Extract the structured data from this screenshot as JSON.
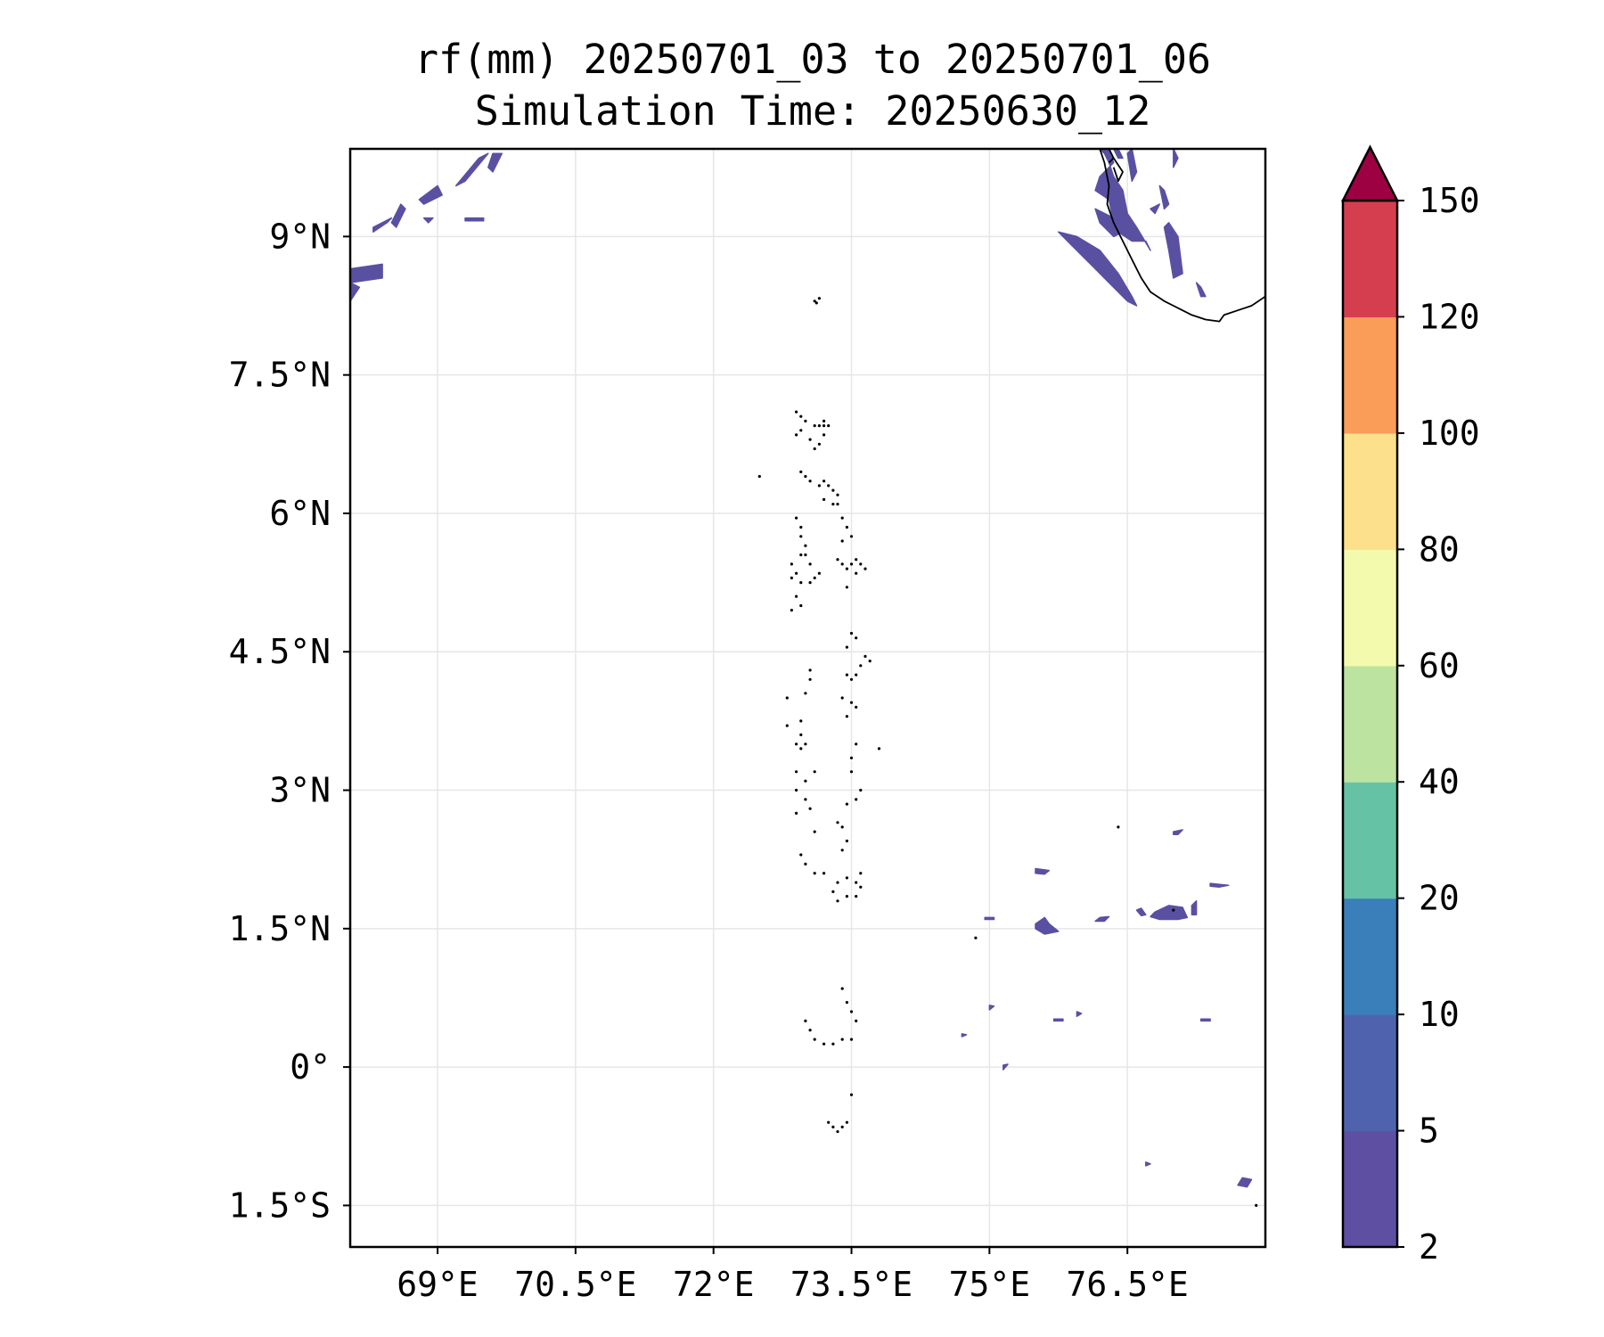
{
  "chart_data": {
    "type": "heatmap",
    "title": "rf(mm) 20250701_03 to 20250701_06",
    "subtitle": "Simulation Time: 20250630_12",
    "xlabel": "",
    "ylabel": "",
    "xlim": [
      68.05,
      78.0
    ],
    "ylim": [
      -1.95,
      9.95
    ],
    "grid": true,
    "x_ticks": [
      {
        "value": 69,
        "label": "69°E"
      },
      {
        "value": 70.5,
        "label": "70.5°E"
      },
      {
        "value": 72,
        "label": "72°E"
      },
      {
        "value": 73.5,
        "label": "73.5°E"
      },
      {
        "value": 75,
        "label": "75°E"
      },
      {
        "value": 76.5,
        "label": "76.5°E"
      }
    ],
    "y_ticks": [
      {
        "value": 9,
        "label": "9°N"
      },
      {
        "value": 7.5,
        "label": "7.5°N"
      },
      {
        "value": 6,
        "label": "6°N"
      },
      {
        "value": 4.5,
        "label": "4.5°N"
      },
      {
        "value": 3,
        "label": "3°N"
      },
      {
        "value": 1.5,
        "label": "1.5°N"
      },
      {
        "value": 0,
        "label": "0°"
      },
      {
        "value": -1.5,
        "label": "1.5°S"
      }
    ],
    "colorbar": {
      "levels": [
        2,
        5,
        10,
        20,
        40,
        60,
        80,
        100,
        120,
        150
      ],
      "labels": [
        "2",
        "5",
        "10",
        "20",
        "40",
        "60",
        "80",
        "100",
        "120",
        "150"
      ],
      "colors": [
        "#5e4fa2",
        "#4f62ad",
        "#3a7fb9",
        "#66c2a5",
        "#bde3a0",
        "#f4faad",
        "#fde08b",
        "#f99d59",
        "#d53e4f"
      ],
      "extend_color": "#9e0142",
      "extend": "max"
    },
    "rain_color": "#5a50a2",
    "rain_areas": [
      {
        "lon": [
          68.05,
          68.4,
          68.4,
          68.05
        ],
        "lat": [
          8.65,
          8.7,
          8.55,
          8.5
        ]
      },
      {
        "lon": [
          68.05,
          68.15,
          68.05
        ],
        "lat": [
          8.5,
          8.45,
          8.3
        ]
      },
      {
        "lon": [
          68.3,
          68.5,
          68.45,
          68.3
        ],
        "lat": [
          9.1,
          9.2,
          9.15,
          9.05
        ]
      },
      {
        "lon": [
          68.5,
          68.6,
          68.65,
          68.55
        ],
        "lat": [
          9.15,
          9.35,
          9.3,
          9.1
        ]
      },
      {
        "lon": [
          68.8,
          69.0,
          69.05,
          68.85
        ],
        "lat": [
          9.4,
          9.55,
          9.45,
          9.35
        ]
      },
      {
        "lon": [
          69.2,
          69.45,
          69.55,
          69.3
        ],
        "lat": [
          9.55,
          9.85,
          9.9,
          9.6
        ]
      },
      {
        "lon": [
          69.55,
          69.6,
          69.7,
          69.6
        ],
        "lat": [
          9.75,
          9.9,
          9.9,
          9.7
        ]
      },
      {
        "lon": [
          69.3,
          69.5,
          69.5,
          69.3
        ],
        "lat": [
          9.2,
          9.2,
          9.17,
          9.17
        ]
      },
      {
        "lon": [
          68.85,
          68.95,
          68.9
        ],
        "lat": [
          9.2,
          9.2,
          9.15
        ]
      },
      {
        "lon": [
          76.1,
          76.3,
          76.35,
          76.2,
          76.15,
          76.3,
          76.35,
          76.4,
          76.55,
          76.7,
          76.75,
          76.6,
          76.5,
          76.45,
          76.35,
          76.3,
          76.25,
          76.2
        ],
        "lat": [
          9.95,
          9.95,
          9.8,
          9.65,
          9.5,
          9.4,
          9.15,
          9.05,
          8.95,
          8.95,
          8.85,
          9.1,
          9.25,
          9.5,
          9.65,
          9.8,
          9.9,
          9.95
        ]
      },
      {
        "lon": [
          75.75,
          75.95,
          76.2,
          76.4,
          76.55,
          76.6,
          76.5,
          76.3,
          76.1,
          75.9
        ],
        "lat": [
          9.05,
          9.0,
          8.85,
          8.6,
          8.35,
          8.25,
          8.3,
          8.5,
          8.7,
          8.9
        ]
      },
      {
        "lon": [
          76.15,
          76.35,
          76.45,
          76.35,
          76.2
        ],
        "lat": [
          9.3,
          9.2,
          9.05,
          9.0,
          9.15
        ]
      },
      {
        "lon": [
          76.5,
          76.55,
          76.6,
          76.55
        ],
        "lat": [
          9.9,
          9.95,
          9.7,
          9.6
        ]
      },
      {
        "lon": [
          76.35,
          76.4,
          76.45,
          76.4
        ],
        "lat": [
          9.95,
          9.95,
          9.85,
          9.85
        ]
      },
      {
        "lon": [
          76.9,
          76.95,
          77.05,
          77.1,
          77.0,
          76.95
        ],
        "lat": [
          9.1,
          9.15,
          9.0,
          8.6,
          8.55,
          8.85
        ]
      },
      {
        "lon": [
          76.85,
          76.9,
          76.95,
          76.9
        ],
        "lat": [
          9.55,
          9.5,
          9.35,
          9.3
        ]
      },
      {
        "lon": [
          77.25,
          77.3,
          77.35,
          77.3
        ],
        "lat": [
          8.5,
          8.45,
          8.35,
          8.35
        ]
      },
      {
        "lon": [
          77.0,
          77.05,
          77.0
        ],
        "lat": [
          9.95,
          9.85,
          9.75
        ]
      },
      {
        "lon": [
          76.75,
          76.85,
          76.8
        ],
        "lat": [
          9.3,
          9.35,
          9.25
        ]
      },
      {
        "lon": [
          75.5,
          75.6,
          75.65,
          75.75,
          75.6,
          75.5
        ],
        "lat": [
          1.55,
          1.62,
          1.55,
          1.47,
          1.44,
          1.5
        ]
      },
      {
        "lon": [
          75.5,
          75.65,
          75.6,
          75.5
        ],
        "lat": [
          2.15,
          2.13,
          2.09,
          2.1
        ]
      },
      {
        "lon": [
          76.6,
          76.65,
          76.7,
          76.65
        ],
        "lat": [
          1.7,
          1.72,
          1.65,
          1.64
        ]
      },
      {
        "lon": [
          76.8,
          76.95,
          77.1,
          77.15,
          77.05,
          76.85,
          76.75
        ],
        "lat": [
          1.68,
          1.75,
          1.73,
          1.62,
          1.6,
          1.6,
          1.63
        ]
      },
      {
        "lon": [
          77.2,
          77.25,
          77.25,
          77.2
        ],
        "lat": [
          1.75,
          1.8,
          1.65,
          1.65
        ]
      },
      {
        "lon": [
          76.2,
          76.3,
          76.25,
          76.15
        ],
        "lat": [
          1.62,
          1.63,
          1.58,
          1.58
        ]
      },
      {
        "lon": [
          77.0,
          77.1,
          77.05,
          77.0
        ],
        "lat": [
          2.55,
          2.57,
          2.52,
          2.52
        ]
      },
      {
        "lon": [
          77.4,
          77.6,
          77.5,
          77.4
        ],
        "lat": [
          1.99,
          1.97,
          1.95,
          1.96
        ]
      },
      {
        "lon": [
          77.75,
          77.85,
          77.8,
          77.7
        ],
        "lat": [
          -1.2,
          -1.22,
          -1.3,
          -1.28
        ]
      },
      {
        "lon": [
          75.0,
          75.05,
          75.0
        ],
        "lat": [
          0.67,
          0.66,
          0.62
        ]
      },
      {
        "lon": [
          75.15,
          75.2,
          75.15
        ],
        "lat": [
          0.02,
          0.03,
          -0.03
        ]
      },
      {
        "lon": [
          75.7,
          75.8,
          75.8,
          75.7
        ],
        "lat": [
          0.52,
          0.52,
          0.5,
          0.5
        ]
      },
      {
        "lon": [
          75.95,
          76.0,
          75.95
        ],
        "lat": [
          0.6,
          0.58,
          0.55
        ]
      },
      {
        "lon": [
          77.3,
          77.4,
          77.4,
          77.3
        ],
        "lat": [
          0.52,
          0.52,
          0.5,
          0.5
        ]
      },
      {
        "lon": [
          74.7,
          74.75,
          74.7
        ],
        "lat": [
          0.36,
          0.35,
          0.33
        ]
      },
      {
        "lon": [
          76.7,
          76.75,
          76.7
        ],
        "lat": [
          -1.03,
          -1.05,
          -1.07
        ]
      },
      {
        "lon": [
          74.95,
          75.05,
          75.05,
          74.95
        ],
        "lat": [
          1.62,
          1.62,
          1.6,
          1.6
        ]
      }
    ],
    "coastline": [
      {
        "lon": [
          76.2,
          76.25,
          76.3,
          76.28,
          76.35,
          76.45,
          76.55,
          76.65,
          76.75,
          76.9,
          77.0,
          77.1,
          77.2,
          77.35,
          77.5,
          77.55,
          77.7,
          77.85,
          78.0
        ],
        "lat": [
          9.95,
          9.8,
          9.55,
          9.35,
          9.15,
          8.95,
          8.75,
          8.55,
          8.4,
          8.3,
          8.25,
          8.2,
          8.15,
          8.1,
          8.08,
          8.15,
          8.2,
          8.25,
          8.35
        ]
      },
      {
        "lon": [
          76.35,
          76.45,
          76.4,
          76.35
        ],
        "lat": [
          9.85,
          9.7,
          9.6,
          9.75
        ]
      },
      {
        "lon": [
          76.3,
          76.35,
          76.3
        ],
        "lat": [
          9.95,
          9.85,
          9.8
        ]
      }
    ],
    "islands": [
      [
        73.1,
        8.3
      ],
      [
        73.15,
        8.33
      ],
      [
        73.12,
        8.28
      ],
      [
        72.9,
        7.1
      ],
      [
        72.95,
        7.05
      ],
      [
        73.0,
        7.0
      ],
      [
        73.1,
        6.95
      ],
      [
        73.15,
        6.95
      ],
      [
        73.2,
        6.95
      ],
      [
        73.2,
        7.0
      ],
      [
        73.25,
        6.95
      ],
      [
        73.2,
        6.85
      ],
      [
        73.15,
        6.75
      ],
      [
        73.1,
        6.7
      ],
      [
        72.95,
        6.9
      ],
      [
        72.9,
        6.85
      ],
      [
        73.05,
        6.8
      ],
      [
        72.5,
        6.4
      ],
      [
        72.95,
        6.45
      ],
      [
        73.0,
        6.4
      ],
      [
        73.05,
        6.35
      ],
      [
        73.15,
        6.3
      ],
      [
        73.2,
        6.35
      ],
      [
        73.25,
        6.3
      ],
      [
        73.3,
        6.25
      ],
      [
        73.35,
        6.2
      ],
      [
        73.3,
        6.1
      ],
      [
        73.35,
        6.1
      ],
      [
        73.2,
        6.15
      ],
      [
        72.9,
        5.95
      ],
      [
        72.95,
        5.85
      ],
      [
        72.95,
        5.75
      ],
      [
        73.0,
        5.65
      ],
      [
        73.0,
        5.55
      ],
      [
        73.05,
        5.45
      ],
      [
        72.95,
        5.55
      ],
      [
        72.85,
        5.45
      ],
      [
        72.9,
        5.35
      ],
      [
        72.95,
        5.25
      ],
      [
        73.05,
        5.25
      ],
      [
        73.1,
        5.3
      ],
      [
        73.15,
        5.35
      ],
      [
        72.85,
        5.3
      ],
      [
        72.9,
        5.1
      ],
      [
        72.95,
        5.0
      ],
      [
        72.85,
        4.95
      ],
      [
        73.4,
        5.95
      ],
      [
        73.45,
        5.85
      ],
      [
        73.5,
        5.75
      ],
      [
        73.4,
        5.7
      ],
      [
        73.35,
        5.5
      ],
      [
        73.4,
        5.45
      ],
      [
        73.5,
        5.45
      ],
      [
        73.55,
        5.5
      ],
      [
        73.6,
        5.45
      ],
      [
        73.65,
        5.4
      ],
      [
        73.55,
        5.35
      ],
      [
        73.45,
        5.4
      ],
      [
        73.45,
        5.2
      ],
      [
        73.5,
        4.7
      ],
      [
        73.55,
        4.65
      ],
      [
        73.45,
        4.55
      ],
      [
        73.65,
        4.45
      ],
      [
        73.7,
        4.4
      ],
      [
        73.6,
        4.35
      ],
      [
        73.55,
        4.25
      ],
      [
        73.5,
        4.2
      ],
      [
        73.45,
        4.25
      ],
      [
        73.4,
        4.0
      ],
      [
        73.5,
        3.95
      ],
      [
        73.55,
        3.9
      ],
      [
        73.45,
        3.8
      ],
      [
        73.05,
        4.3
      ],
      [
        73.05,
        4.2
      ],
      [
        73.0,
        4.05
      ],
      [
        72.8,
        4.0
      ],
      [
        72.8,
        3.7
      ],
      [
        72.95,
        3.75
      ],
      [
        72.95,
        3.6
      ],
      [
        72.9,
        3.5
      ],
      [
        72.95,
        3.45
      ],
      [
        73.0,
        3.5
      ],
      [
        72.9,
        3.2
      ],
      [
        73.0,
        3.1
      ],
      [
        73.1,
        3.2
      ],
      [
        72.9,
        3.0
      ],
      [
        73.0,
        2.9
      ],
      [
        73.05,
        2.8
      ],
      [
        72.9,
        2.75
      ],
      [
        73.1,
        2.55
      ],
      [
        73.35,
        2.65
      ],
      [
        73.4,
        2.6
      ],
      [
        73.45,
        2.45
      ],
      [
        73.4,
        2.35
      ],
      [
        73.45,
        2.85
      ],
      [
        73.55,
        2.9
      ],
      [
        73.6,
        3.0
      ],
      [
        73.5,
        3.2
      ],
      [
        73.5,
        3.35
      ],
      [
        73.55,
        3.5
      ],
      [
        73.8,
        3.45
      ],
      [
        72.95,
        2.3
      ],
      [
        73.0,
        2.2
      ],
      [
        73.1,
        2.1
      ],
      [
        73.2,
        2.1
      ],
      [
        73.3,
        1.9
      ],
      [
        73.35,
        2.0
      ],
      [
        73.45,
        2.05
      ],
      [
        73.55,
        2.0
      ],
      [
        73.6,
        2.1
      ],
      [
        73.6,
        1.95
      ],
      [
        73.55,
        1.85
      ],
      [
        73.45,
        1.85
      ],
      [
        73.35,
        1.8
      ],
      [
        73.4,
        0.85
      ],
      [
        73.45,
        0.7
      ],
      [
        73.5,
        0.6
      ],
      [
        73.55,
        0.5
      ],
      [
        73.5,
        0.3
      ],
      [
        73.4,
        0.3
      ],
      [
        73.3,
        0.25
      ],
      [
        73.2,
        0.25
      ],
      [
        73.1,
        0.3
      ],
      [
        73.05,
        0.4
      ],
      [
        73.0,
        0.5
      ],
      [
        73.25,
        -0.6
      ],
      [
        73.3,
        -0.65
      ],
      [
        73.35,
        -0.7
      ],
      [
        73.4,
        -0.65
      ],
      [
        73.45,
        -0.6
      ],
      [
        73.5,
        -0.3
      ],
      [
        74.85,
        1.4
      ],
      [
        77.9,
        -1.5
      ],
      [
        76.4,
        2.6
      ],
      [
        77.0,
        1.7
      ]
    ]
  }
}
